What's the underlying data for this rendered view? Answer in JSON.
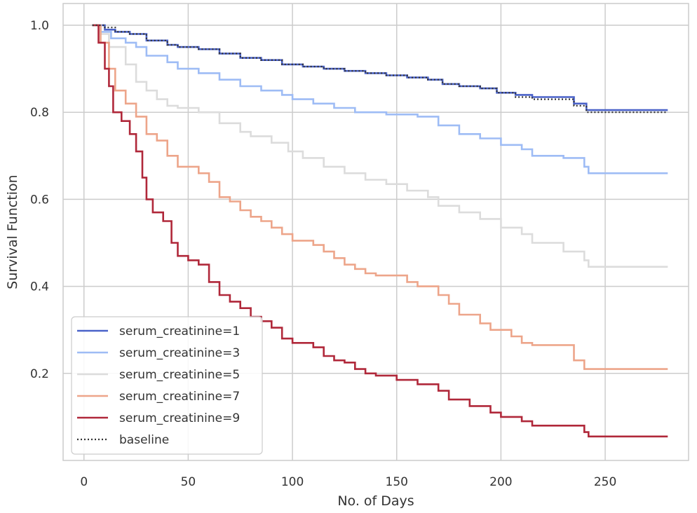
{
  "chart_data": {
    "type": "line",
    "step": true,
    "title": "",
    "xlabel": "No. of Days",
    "ylabel": "Survival Function",
    "xlim": [
      -10,
      290
    ],
    "ylim": [
      0.0,
      1.05
    ],
    "xticks": [
      0,
      50,
      100,
      150,
      200,
      250
    ],
    "yticks": [
      0.2,
      0.4,
      0.6,
      0.8,
      1.0
    ],
    "xtick_labels": [
      "0",
      "50",
      "100",
      "150",
      "200",
      "250"
    ],
    "ytick_labels": [
      "0.2",
      "0.4",
      "0.6",
      "0.8",
      "1.0"
    ],
    "grid": true,
    "legend_position": "lower-left",
    "series": [
      {
        "name": "serum_creatinine=1",
        "color": "#4a62c9",
        "style": "solid",
        "points": [
          [
            4,
            1.0
          ],
          [
            10,
            0.99
          ],
          [
            15,
            0.985
          ],
          [
            22,
            0.98
          ],
          [
            30,
            0.965
          ],
          [
            40,
            0.955
          ],
          [
            45,
            0.95
          ],
          [
            55,
            0.945
          ],
          [
            65,
            0.935
          ],
          [
            75,
            0.925
          ],
          [
            85,
            0.92
          ],
          [
            95,
            0.91
          ],
          [
            105,
            0.905
          ],
          [
            115,
            0.9
          ],
          [
            125,
            0.895
          ],
          [
            135,
            0.89
          ],
          [
            145,
            0.885
          ],
          [
            155,
            0.88
          ],
          [
            165,
            0.875
          ],
          [
            172,
            0.865
          ],
          [
            180,
            0.86
          ],
          [
            190,
            0.855
          ],
          [
            198,
            0.845
          ],
          [
            207,
            0.84
          ],
          [
            215,
            0.835
          ],
          [
            235,
            0.82
          ],
          [
            241,
            0.805
          ],
          [
            280,
            0.805
          ]
        ]
      },
      {
        "name": "serum_creatinine=3",
        "color": "#9ebcf5",
        "style": "solid",
        "points": [
          [
            4,
            1.0
          ],
          [
            8,
            0.985
          ],
          [
            13,
            0.97
          ],
          [
            20,
            0.96
          ],
          [
            25,
            0.95
          ],
          [
            30,
            0.93
          ],
          [
            40,
            0.915
          ],
          [
            45,
            0.9
          ],
          [
            55,
            0.89
          ],
          [
            65,
            0.875
          ],
          [
            75,
            0.86
          ],
          [
            85,
            0.85
          ],
          [
            95,
            0.84
          ],
          [
            100,
            0.83
          ],
          [
            110,
            0.82
          ],
          [
            120,
            0.81
          ],
          [
            130,
            0.8
          ],
          [
            145,
            0.795
          ],
          [
            160,
            0.79
          ],
          [
            170,
            0.77
          ],
          [
            180,
            0.75
          ],
          [
            190,
            0.74
          ],
          [
            200,
            0.725
          ],
          [
            210,
            0.715
          ],
          [
            215,
            0.7
          ],
          [
            230,
            0.695
          ],
          [
            240,
            0.675
          ],
          [
            242,
            0.66
          ],
          [
            280,
            0.66
          ]
        ]
      },
      {
        "name": "serum_creatinine=5",
        "color": "#dcdcdc",
        "style": "solid",
        "points": [
          [
            4,
            1.0
          ],
          [
            8,
            0.98
          ],
          [
            12,
            0.95
          ],
          [
            20,
            0.91
          ],
          [
            25,
            0.87
          ],
          [
            30,
            0.85
          ],
          [
            35,
            0.83
          ],
          [
            40,
            0.815
          ],
          [
            45,
            0.81
          ],
          [
            55,
            0.8
          ],
          [
            65,
            0.775
          ],
          [
            75,
            0.755
          ],
          [
            80,
            0.745
          ],
          [
            90,
            0.73
          ],
          [
            98,
            0.71
          ],
          [
            105,
            0.695
          ],
          [
            115,
            0.675
          ],
          [
            125,
            0.66
          ],
          [
            135,
            0.645
          ],
          [
            145,
            0.635
          ],
          [
            155,
            0.62
          ],
          [
            165,
            0.605
          ],
          [
            170,
            0.585
          ],
          [
            180,
            0.57
          ],
          [
            190,
            0.555
          ],
          [
            200,
            0.535
          ],
          [
            210,
            0.52
          ],
          [
            215,
            0.5
          ],
          [
            230,
            0.48
          ],
          [
            240,
            0.46
          ],
          [
            242,
            0.445
          ],
          [
            280,
            0.445
          ]
        ]
      },
      {
        "name": "serum_creatinine=7",
        "color": "#eda58a",
        "style": "solid",
        "points": [
          [
            4,
            1.0
          ],
          [
            8,
            0.96
          ],
          [
            12,
            0.9
          ],
          [
            15,
            0.85
          ],
          [
            20,
            0.82
          ],
          [
            25,
            0.79
          ],
          [
            30,
            0.75
          ],
          [
            35,
            0.735
          ],
          [
            40,
            0.7
          ],
          [
            45,
            0.675
          ],
          [
            55,
            0.66
          ],
          [
            60,
            0.64
          ],
          [
            65,
            0.605
          ],
          [
            70,
            0.595
          ],
          [
            75,
            0.575
          ],
          [
            80,
            0.56
          ],
          [
            85,
            0.55
          ],
          [
            90,
            0.535
          ],
          [
            95,
            0.52
          ],
          [
            100,
            0.505
          ],
          [
            110,
            0.495
          ],
          [
            115,
            0.48
          ],
          [
            120,
            0.465
          ],
          [
            125,
            0.45
          ],
          [
            130,
            0.44
          ],
          [
            135,
            0.43
          ],
          [
            140,
            0.425
          ],
          [
            155,
            0.41
          ],
          [
            160,
            0.4
          ],
          [
            170,
            0.38
          ],
          [
            175,
            0.36
          ],
          [
            180,
            0.335
          ],
          [
            190,
            0.315
          ],
          [
            195,
            0.3
          ],
          [
            205,
            0.285
          ],
          [
            210,
            0.27
          ],
          [
            215,
            0.265
          ],
          [
            235,
            0.23
          ],
          [
            240,
            0.21
          ],
          [
            280,
            0.21
          ]
        ]
      },
      {
        "name": "serum_creatinine=9",
        "color": "#b0283a",
        "style": "solid",
        "points": [
          [
            4,
            1.0
          ],
          [
            7,
            0.96
          ],
          [
            10,
            0.9
          ],
          [
            12,
            0.86
          ],
          [
            14,
            0.8
          ],
          [
            18,
            0.78
          ],
          [
            22,
            0.75
          ],
          [
            25,
            0.71
          ],
          [
            28,
            0.65
          ],
          [
            30,
            0.6
          ],
          [
            33,
            0.57
          ],
          [
            38,
            0.55
          ],
          [
            42,
            0.5
          ],
          [
            45,
            0.47
          ],
          [
            50,
            0.46
          ],
          [
            55,
            0.45
          ],
          [
            60,
            0.41
          ],
          [
            65,
            0.38
          ],
          [
            70,
            0.365
          ],
          [
            75,
            0.35
          ],
          [
            80,
            0.33
          ],
          [
            85,
            0.32
          ],
          [
            90,
            0.305
          ],
          [
            95,
            0.28
          ],
          [
            100,
            0.27
          ],
          [
            110,
            0.26
          ],
          [
            115,
            0.24
          ],
          [
            120,
            0.23
          ],
          [
            125,
            0.225
          ],
          [
            130,
            0.21
          ],
          [
            135,
            0.2
          ],
          [
            140,
            0.195
          ],
          [
            150,
            0.185
          ],
          [
            160,
            0.175
          ],
          [
            170,
            0.16
          ],
          [
            175,
            0.14
          ],
          [
            185,
            0.125
          ],
          [
            195,
            0.11
          ],
          [
            200,
            0.1
          ],
          [
            210,
            0.09
          ],
          [
            215,
            0.08
          ],
          [
            240,
            0.065
          ],
          [
            242,
            0.055
          ],
          [
            280,
            0.055
          ]
        ]
      },
      {
        "name": "baseline",
        "color": "#333333",
        "style": "dotted",
        "points": [
          [
            4,
            1.0
          ],
          [
            10,
            0.995
          ],
          [
            15,
            0.985
          ],
          [
            22,
            0.98
          ],
          [
            30,
            0.965
          ],
          [
            40,
            0.955
          ],
          [
            45,
            0.95
          ],
          [
            55,
            0.945
          ],
          [
            65,
            0.935
          ],
          [
            75,
            0.925
          ],
          [
            85,
            0.92
          ],
          [
            95,
            0.91
          ],
          [
            105,
            0.905
          ],
          [
            115,
            0.9
          ],
          [
            125,
            0.895
          ],
          [
            135,
            0.89
          ],
          [
            145,
            0.885
          ],
          [
            155,
            0.88
          ],
          [
            165,
            0.875
          ],
          [
            172,
            0.865
          ],
          [
            180,
            0.86
          ],
          [
            190,
            0.855
          ],
          [
            198,
            0.845
          ],
          [
            207,
            0.835
          ],
          [
            215,
            0.83
          ],
          [
            235,
            0.815
          ],
          [
            241,
            0.8
          ],
          [
            280,
            0.8
          ]
        ]
      }
    ]
  }
}
